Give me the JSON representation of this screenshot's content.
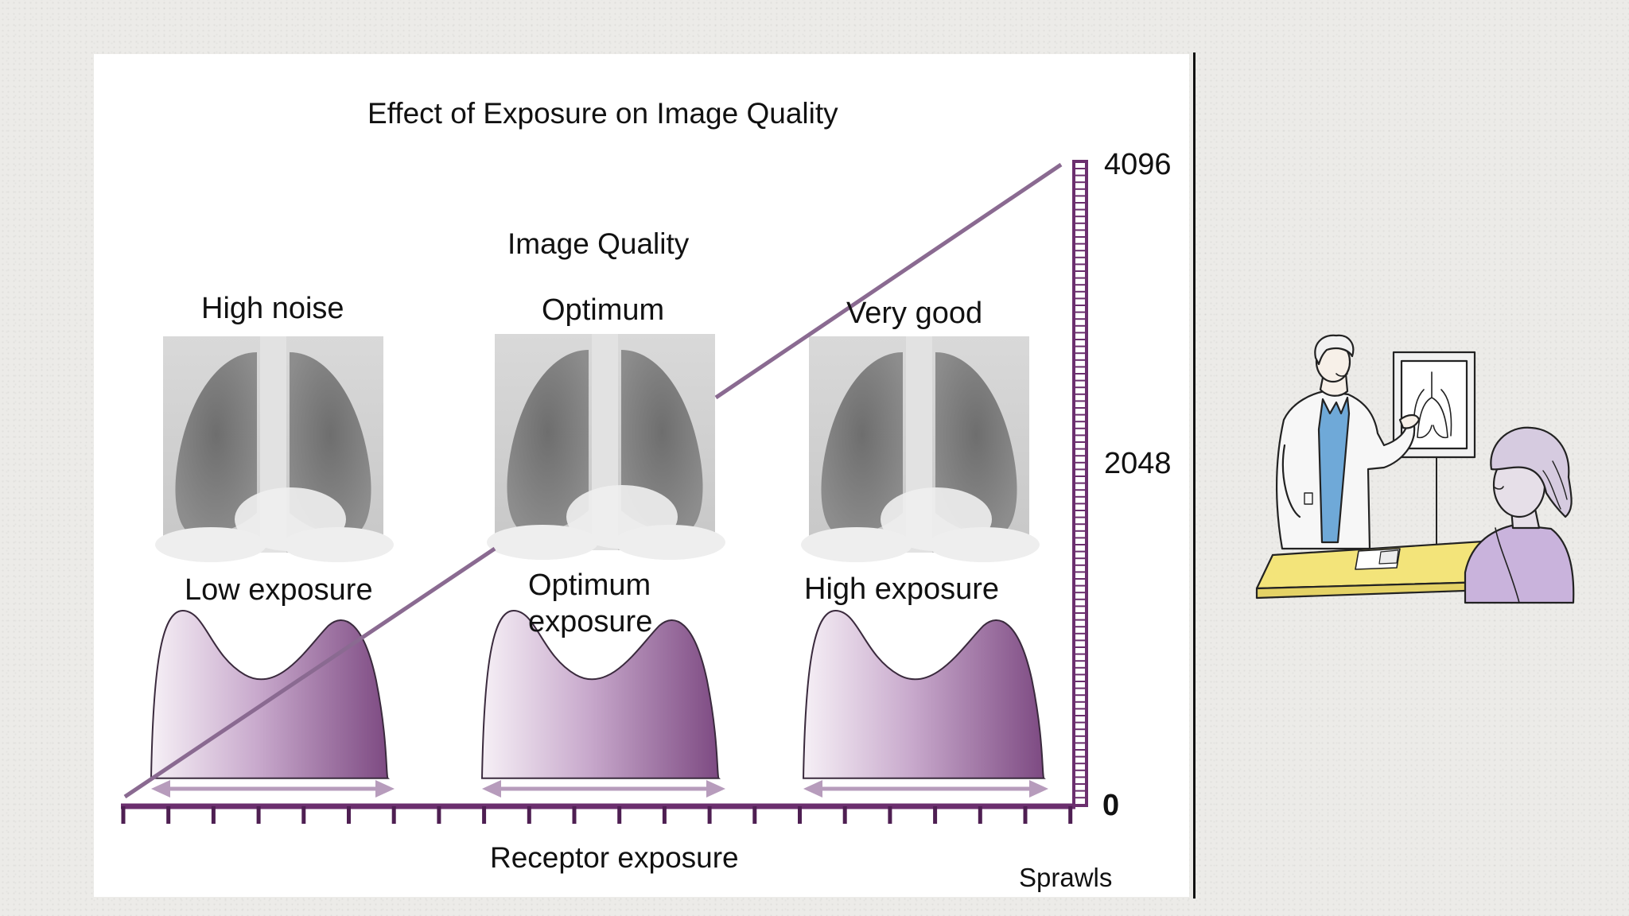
{
  "diagram": {
    "title": "Effect of Exposure on Image Quality",
    "quality_heading": "Image Quality",
    "quality_labels": [
      "High noise",
      "Optimum",
      "Very good"
    ],
    "exposure_labels": {
      "low": "Low exposure",
      "optimum_line1": "Optimum",
      "optimum_line2": "exposure",
      "high": "High exposure"
    },
    "x_axis_label": "Receptor exposure",
    "credit": "Sprawls",
    "scale_ticks": [
      "4096",
      "2048",
      "0"
    ],
    "images": [
      "chest-xray",
      "chest-xray",
      "chest-xray"
    ],
    "colors": {
      "accent": "#6b2f6e",
      "line": "#8a6a91",
      "histogram_dark": "#8b5a8f",
      "histogram_light": "#f6f0f6"
    }
  },
  "illustration": {
    "subject": "doctor showing a chest x-ray to a patient",
    "colors": {
      "desk": "#f3e47a",
      "patient": "#c9b3dc",
      "scrubs": "#6fa9d8"
    }
  }
}
